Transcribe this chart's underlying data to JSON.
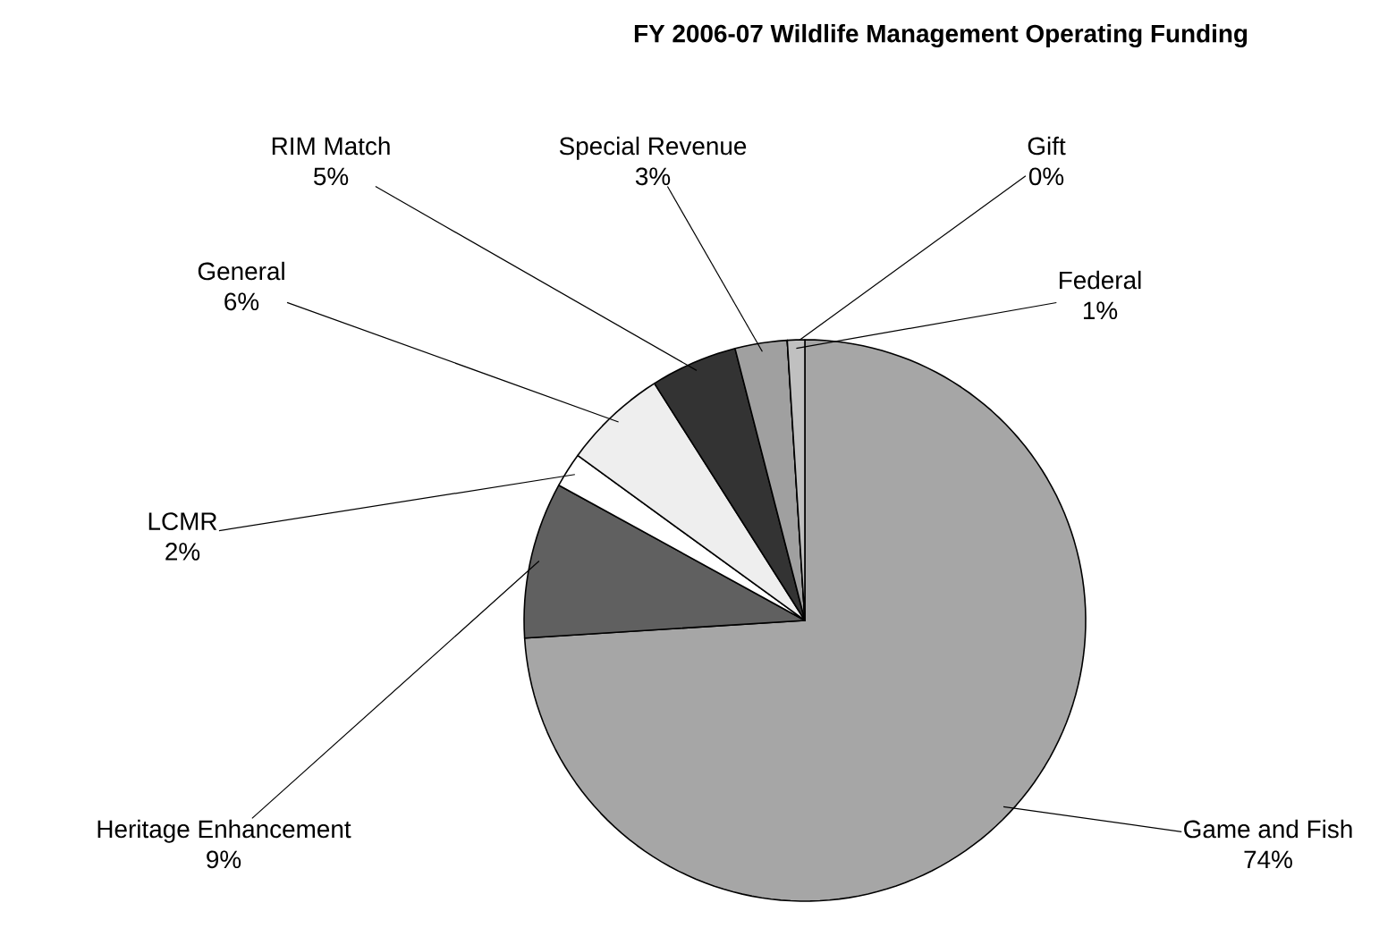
{
  "chart_data": {
    "type": "pie",
    "title": "FY 2006-07 Wildlife Management Operating Funding",
    "categories": [
      "Game and Fish",
      "Heritage Enhancement",
      "LCMR",
      "General",
      "RIM Match",
      "Special Revenue",
      "Gift",
      "Federal"
    ],
    "values": [
      74,
      9,
      2,
      6,
      5,
      3,
      0,
      1
    ],
    "colors": [
      "#a6a6a6",
      "#606060",
      "#ffffff",
      "#eeeeee",
      "#333333",
      "#a0a0a0",
      "#ffffff",
      "#c0c0c0"
    ],
    "value_labels": [
      "74%",
      "9%",
      "2%",
      "6%",
      "5%",
      "3%",
      "0%",
      "1%"
    ]
  }
}
